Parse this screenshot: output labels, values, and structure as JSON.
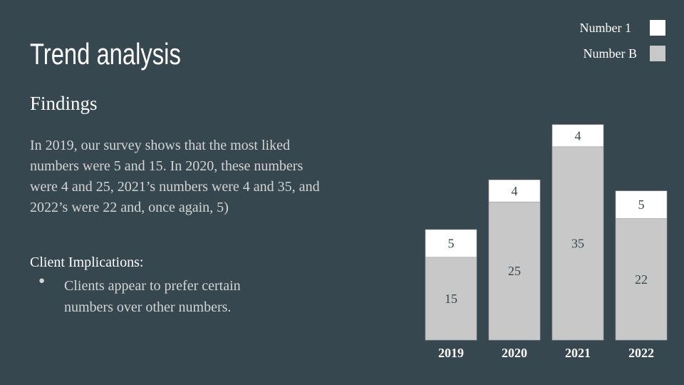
{
  "slide": {
    "title": "Trend analysis",
    "subtitle": "Findings",
    "body": "In 2019, our survey shows that the most liked numbers were 5 and 15. In 2020, these numbers were 4 and 25, 2021’s numbers were 4 and 35, and 2022’s were 22 and, once again, 5)",
    "implications_heading": "Client Implications:",
    "bullet_marker": "●",
    "bullets": [
      "Clients appear to prefer certain numbers over other numbers."
    ]
  },
  "colors": {
    "background": "#37474f",
    "number_1": "#ffffff",
    "number_b": "#c8c8c8"
  },
  "chart_data": {
    "type": "bar",
    "stacked": true,
    "categories": [
      "2019",
      "2020",
      "2021",
      "2022"
    ],
    "series": [
      {
        "name": "Number B",
        "values": [
          15,
          25,
          35,
          22
        ],
        "color": "#c8c8c8"
      },
      {
        "name": "Number 1",
        "values": [
          5,
          4,
          4,
          5
        ],
        "color": "#ffffff"
      }
    ],
    "legend_order": [
      "Number 1",
      "Number B"
    ],
    "legend_position": "top-right",
    "data_labels": true,
    "grid": false,
    "ylim": [
      0,
      40
    ]
  }
}
